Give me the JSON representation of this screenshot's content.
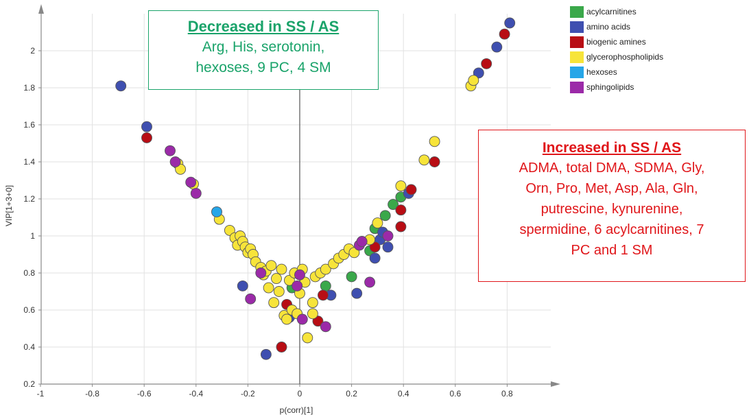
{
  "chart_data": {
    "type": "scatter",
    "title": "",
    "xlabel": "p(corr)[1]",
    "ylabel": "VIP[1+3+0]",
    "xlim": [
      -1,
      0.9
    ],
    "ylim": [
      0.2,
      2.2
    ],
    "xticks": [
      -1,
      -0.8,
      -0.6,
      -0.4,
      -0.2,
      0,
      0.2,
      0.4,
      0.6,
      0.8
    ],
    "yticks": [
      0.2,
      0.4,
      0.6,
      0.8,
      1,
      1.2,
      1.4,
      1.6,
      1.8,
      2
    ],
    "grid": true,
    "legend_position": "top-right",
    "series": [
      {
        "name": "acylcarnitines",
        "color": "#3aa84a",
        "points": [
          [
            0.1,
            0.73
          ],
          [
            0.2,
            0.78
          ],
          [
            0.27,
            0.92
          ],
          [
            0.29,
            1.04
          ],
          [
            0.33,
            1.11
          ],
          [
            0.36,
            1.17
          ],
          [
            0.39,
            1.21
          ],
          [
            -0.03,
            0.72
          ]
        ]
      },
      {
        "name": "amino acids",
        "color": "#3f4fb0",
        "points": [
          [
            -0.69,
            1.81
          ],
          [
            -0.59,
            1.59
          ],
          [
            -0.22,
            0.73
          ],
          [
            -0.13,
            0.36
          ],
          [
            -0.04,
            0.56
          ],
          [
            0.12,
            0.68
          ],
          [
            0.22,
            0.69
          ],
          [
            0.29,
            0.88
          ],
          [
            0.31,
            0.98
          ],
          [
            0.32,
            1.02
          ],
          [
            0.34,
            0.94
          ],
          [
            0.42,
            1.23
          ],
          [
            0.69,
            1.88
          ],
          [
            0.76,
            2.02
          ],
          [
            0.81,
            2.15
          ]
        ]
      },
      {
        "name": "biogenic amines",
        "color": "#b80d14",
        "points": [
          [
            -0.59,
            1.53
          ],
          [
            -0.07,
            0.4
          ],
          [
            -0.05,
            0.63
          ],
          [
            0.07,
            0.54
          ],
          [
            0.09,
            0.68
          ],
          [
            0.29,
            0.94
          ],
          [
            0.39,
            1.05
          ],
          [
            0.39,
            1.14
          ],
          [
            0.43,
            1.25
          ],
          [
            0.52,
            1.4
          ],
          [
            0.72,
            1.93
          ],
          [
            0.79,
            2.09
          ]
        ]
      },
      {
        "name": "glycerophospholipids",
        "color": "#f7e43a",
        "points": [
          [
            -0.47,
            1.39
          ],
          [
            -0.46,
            1.36
          ],
          [
            -0.41,
            1.28
          ],
          [
            -0.31,
            1.09
          ],
          [
            -0.27,
            1.03
          ],
          [
            -0.25,
            0.99
          ],
          [
            -0.24,
            0.95
          ],
          [
            -0.23,
            1.0
          ],
          [
            -0.22,
            0.97
          ],
          [
            -0.21,
            0.94
          ],
          [
            -0.2,
            0.91
          ],
          [
            -0.19,
            0.93
          ],
          [
            -0.18,
            0.9
          ],
          [
            -0.17,
            0.86
          ],
          [
            -0.15,
            0.83
          ],
          [
            -0.14,
            0.79
          ],
          [
            -0.13,
            0.81
          ],
          [
            -0.12,
            0.72
          ],
          [
            -0.11,
            0.84
          ],
          [
            -0.1,
            0.64
          ],
          [
            -0.09,
            0.77
          ],
          [
            -0.08,
            0.7
          ],
          [
            -0.07,
            0.82
          ],
          [
            -0.06,
            0.57
          ],
          [
            -0.05,
            0.55
          ],
          [
            -0.04,
            0.76
          ],
          [
            -0.03,
            0.6
          ],
          [
            -0.02,
            0.8
          ],
          [
            -0.01,
            0.58
          ],
          [
            0.0,
            0.69
          ],
          [
            0.01,
            0.82
          ],
          [
            0.02,
            0.75
          ],
          [
            0.03,
            0.45
          ],
          [
            0.05,
            0.58
          ],
          [
            0.05,
            0.64
          ],
          [
            0.06,
            0.78
          ],
          [
            0.08,
            0.8
          ],
          [
            0.1,
            0.82
          ],
          [
            0.13,
            0.85
          ],
          [
            0.15,
            0.88
          ],
          [
            0.17,
            0.9
          ],
          [
            0.19,
            0.93
          ],
          [
            0.21,
            0.91
          ],
          [
            0.24,
            0.97
          ],
          [
            0.27,
            0.98
          ],
          [
            0.3,
            1.07
          ],
          [
            0.39,
            1.27
          ],
          [
            0.48,
            1.41
          ],
          [
            0.52,
            1.51
          ],
          [
            0.66,
            1.81
          ],
          [
            0.67,
            1.84
          ]
        ]
      },
      {
        "name": "hexoses",
        "color": "#26a6e8",
        "points": [
          [
            -0.32,
            1.13
          ]
        ]
      },
      {
        "name": "sphingolipids",
        "color": "#9b2aa8",
        "points": [
          [
            -0.5,
            1.46
          ],
          [
            -0.48,
            1.4
          ],
          [
            -0.42,
            1.29
          ],
          [
            -0.4,
            1.23
          ],
          [
            -0.19,
            0.66
          ],
          [
            -0.15,
            0.8
          ],
          [
            -0.01,
            0.73
          ],
          [
            0.0,
            0.79
          ],
          [
            0.01,
            0.55
          ],
          [
            0.1,
            0.51
          ],
          [
            0.23,
            0.95
          ],
          [
            0.24,
            0.97
          ],
          [
            0.27,
            0.75
          ],
          [
            0.34,
            1.0
          ]
        ]
      }
    ]
  },
  "annotations": {
    "decreased": {
      "title": "Decreased in SS / AS",
      "lines": [
        "Arg, His, serotonin,",
        "hexoses, 9 PC, 4 SM"
      ]
    },
    "increased": {
      "title": "Increased in SS / AS",
      "lines": [
        "ADMA, total DMA, SDMA, Gly,",
        "Orn, Pro, Met, Asp, Ala, Gln,",
        "putrescine, kynurenine,",
        "spermidine, 6 acylcarnitines, 7",
        "PC and 1 SM"
      ]
    }
  }
}
